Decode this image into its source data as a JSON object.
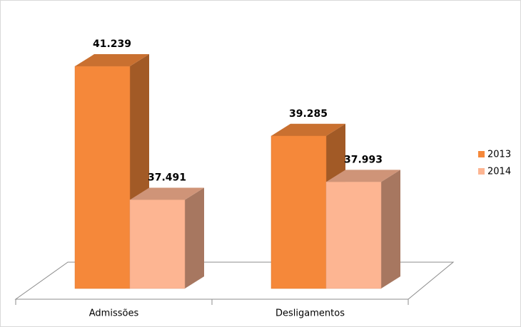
{
  "chart_data": {
    "type": "bar3d",
    "categories": [
      "Admissões",
      "Desligamentos"
    ],
    "series": [
      {
        "name": "2013",
        "color": "#f5883a",
        "values": [
          41239,
          39285
        ],
        "value_labels": [
          "41.239",
          "39.285"
        ]
      },
      {
        "name": "2014",
        "color": "#fdb592",
        "values": [
          37491,
          37993
        ],
        "value_labels": [
          "37.491",
          "37.993"
        ]
      }
    ],
    "ylim": [
      35000,
      42000
    ],
    "legend": "right"
  }
}
